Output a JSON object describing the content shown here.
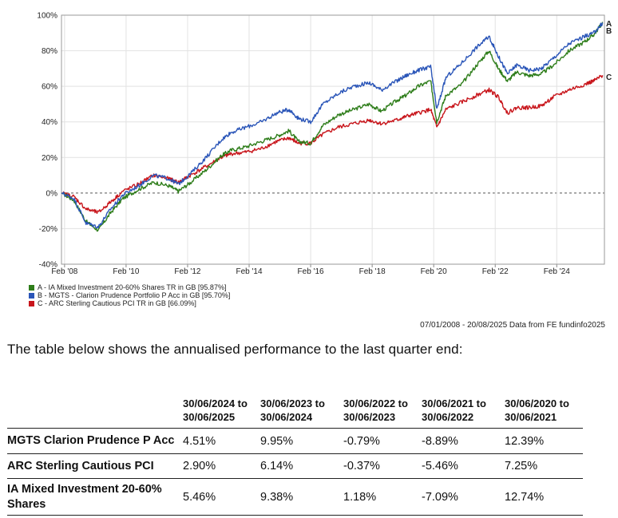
{
  "chart_data": {
    "type": "line",
    "ylim": [
      -40,
      100
    ],
    "y_ticks": [
      "100%",
      "80%",
      "60%",
      "40%",
      "20%",
      "0%",
      "-20%",
      "-40%"
    ],
    "x_ticks": [
      "Feb '08",
      "Feb '10",
      "Feb '12",
      "Feb '14",
      "Feb '16",
      "Feb '18",
      "Feb '20",
      "Feb '22",
      "Feb '24"
    ],
    "grid": true,
    "series": [
      {
        "name": "A - IA Mixed Investment 20-60% Shares TR in GB [95.87%]",
        "end_label": "A",
        "color": "#2e7d1a",
        "x": [
          2008.0,
          2008.4,
          2008.8,
          2009.2,
          2009.6,
          2010.0,
          2010.5,
          2011.0,
          2011.5,
          2011.8,
          2012.2,
          2012.7,
          2013.2,
          2013.5,
          2014.0,
          2014.5,
          2015.0,
          2015.4,
          2015.7,
          2016.1,
          2016.5,
          2017.0,
          2017.5,
          2018.0,
          2018.4,
          2018.9,
          2019.2,
          2019.6,
          2020.0,
          2020.2,
          2020.5,
          2021.0,
          2021.5,
          2021.9,
          2022.2,
          2022.5,
          2022.8,
          2023.2,
          2023.6,
          2024.0,
          2024.5,
          2025.0,
          2025.3,
          2025.6
        ],
        "y": [
          0,
          -4,
          -16,
          -21,
          -11,
          -3,
          2,
          6,
          4,
          1,
          6,
          13,
          21,
          24,
          26,
          29,
          32,
          35,
          29,
          28,
          38,
          44,
          47,
          50,
          46,
          52,
          55,
          60,
          63,
          40,
          55,
          61,
          72,
          80,
          70,
          63,
          68,
          66,
          67,
          72,
          80,
          85,
          89,
          95.9
        ]
      },
      {
        "name": "B - MGTS - Clarion Prudence Portfolio P Acc in GB [95.70%]",
        "end_label": "B",
        "color": "#2a55b8",
        "x": [
          2008.0,
          2008.4,
          2008.8,
          2009.2,
          2009.6,
          2010.0,
          2010.5,
          2011.0,
          2011.5,
          2011.8,
          2012.2,
          2012.7,
          2013.2,
          2013.5,
          2014.0,
          2014.5,
          2015.0,
          2015.4,
          2015.7,
          2016.1,
          2016.5,
          2017.0,
          2017.5,
          2018.0,
          2018.4,
          2018.9,
          2019.2,
          2019.6,
          2020.0,
          2020.2,
          2020.5,
          2021.0,
          2021.5,
          2021.9,
          2022.2,
          2022.5,
          2022.8,
          2023.2,
          2023.6,
          2024.0,
          2024.5,
          2025.0,
          2025.3,
          2025.6
        ],
        "y": [
          0,
          -3,
          -17,
          -19,
          -9,
          -1,
          4,
          10,
          8,
          5,
          11,
          20,
          30,
          34,
          37,
          40,
          45,
          47,
          42,
          40,
          50,
          56,
          60,
          62,
          58,
          63,
          66,
          69,
          71,
          47,
          65,
          73,
          82,
          88,
          77,
          67,
          72,
          69,
          70,
          76,
          84,
          88,
          90,
          95.7
        ]
      },
      {
        "name": "C - ARC Sterling Cautious PCI TR in GB [66.09%]",
        "end_label": "C",
        "color": "#c8151b",
        "x": [
          2008.0,
          2008.4,
          2008.8,
          2009.2,
          2009.6,
          2010.0,
          2010.5,
          2011.0,
          2011.5,
          2011.8,
          2012.2,
          2012.7,
          2013.2,
          2013.5,
          2014.0,
          2014.5,
          2015.0,
          2015.4,
          2015.7,
          2016.1,
          2016.5,
          2017.0,
          2017.5,
          2018.0,
          2018.4,
          2018.9,
          2019.2,
          2019.6,
          2020.0,
          2020.2,
          2020.5,
          2021.0,
          2021.5,
          2021.9,
          2022.2,
          2022.5,
          2022.8,
          2023.2,
          2023.6,
          2024.0,
          2024.5,
          2025.0,
          2025.3,
          2025.6
        ],
        "y": [
          0,
          -2,
          -9,
          -11,
          -5,
          1,
          5,
          10,
          8,
          6,
          10,
          15,
          20,
          22,
          23,
          25,
          29,
          31,
          28,
          28,
          33,
          37,
          39,
          41,
          39,
          41,
          43,
          45,
          47,
          37,
          47,
          51,
          55,
          58,
          54,
          45,
          48,
          48,
          49,
          54,
          58,
          61,
          63,
          66.1
        ]
      }
    ]
  },
  "source_text": "07/01/2008 - 20/08/2025 Data from FE fundinfo2025",
  "intro_text": "The table below shows the annualised performance to the last quarter end:",
  "table": {
    "headers": [
      "",
      "30/06/2024 to 30/06/2025",
      "30/06/2023 to 30/06/2024",
      "30/06/2022 to 30/06/2023",
      "30/06/2021 to 30/06/2022",
      "30/06/2020 to 30/06/2021"
    ],
    "rows": [
      {
        "name": "MGTS Clarion Prudence P Acc",
        "values": [
          "4.51%",
          "9.95%",
          "-0.79%",
          "-8.89%",
          "12.39%"
        ]
      },
      {
        "name": "ARC Sterling Cautious PCI",
        "values": [
          "2.90%",
          "6.14%",
          "-0.37%",
          "-5.46%",
          "7.25%"
        ]
      },
      {
        "name": "IA Mixed Investment 20-60% Shares",
        "values": [
          "5.46%",
          "9.38%",
          "1.18%",
          "-7.09%",
          "12.74%"
        ]
      }
    ]
  }
}
